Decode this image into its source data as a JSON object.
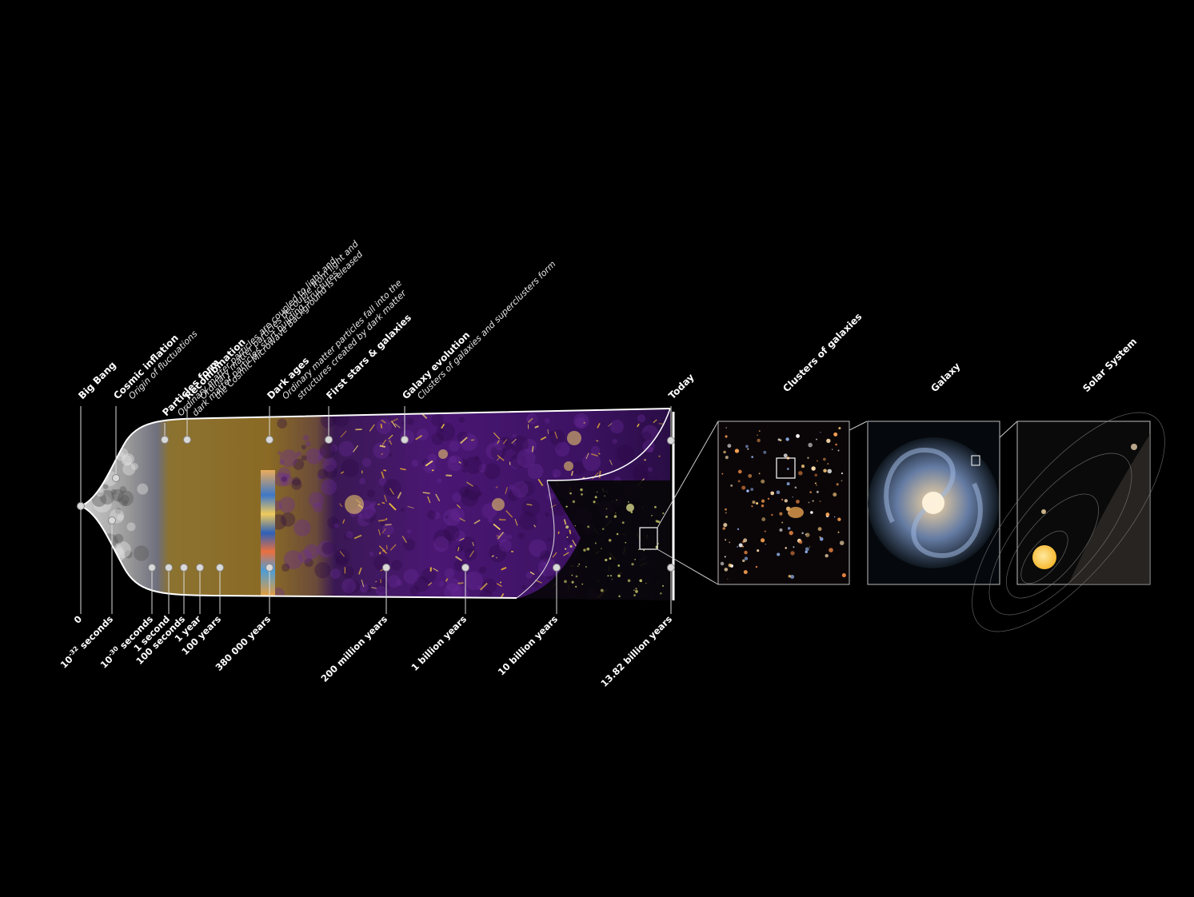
{
  "events": [
    {
      "title": "Big Bang"
    },
    {
      "title": "Cosmic inflation",
      "desc": [
        "Origin of fluctuations"
      ]
    },
    {
      "title": "Particles form",
      "desc": [
        "Ordinary matter particles are coupled to light and",
        "dark matter particles start building structures"
      ]
    },
    {
      "title": "Recombination",
      "desc": [
        "Ordinary matter particles decouple from light and",
        "the Cosmic Microwave Background is released"
      ]
    },
    {
      "title": "Dark ages",
      "desc": [
        "Ordinary  matter  particles  fall  into  the",
        "structures created by dark matter"
      ]
    },
    {
      "title": "First stars & galaxies"
    },
    {
      "title": "Galaxy evolution",
      "desc": [
        "Clusters of galaxies and superclusters form"
      ]
    },
    {
      "title": "Today"
    }
  ],
  "times": [
    {
      "label": "0"
    },
    {
      "base": "10",
      "exp": "-32",
      "unit": " seconds"
    },
    {
      "base": "10",
      "exp": "-30",
      "unit": " seconds"
    },
    {
      "label": "1 second"
    },
    {
      "label": "100 seconds"
    },
    {
      "label": "1 year"
    },
    {
      "label": "100 years"
    },
    {
      "label": "380 000 years"
    },
    {
      "label": "200 million years"
    },
    {
      "label": "1 billion years"
    },
    {
      "label": "10 billion years"
    },
    {
      "label": "13.82 billion years"
    }
  ],
  "zoom_panels": [
    {
      "title": "Clusters of galaxies"
    },
    {
      "title": "Galaxy"
    },
    {
      "title": "Solar System"
    }
  ],
  "colors": {
    "background": "#000000",
    "dark_matter_web": "#5a1a8c",
    "filaments": "#f2c53a",
    "plasma_era": "#8a6a22",
    "outline": "#ffffff"
  }
}
